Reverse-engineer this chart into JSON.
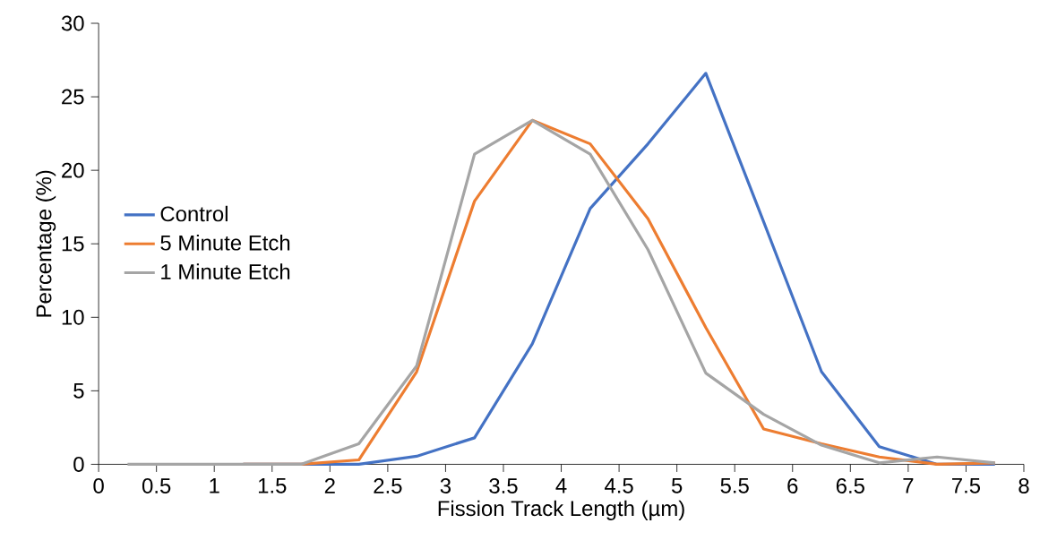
{
  "chart_data": {
    "type": "line",
    "xlabel": "Fission Track Length (µm)",
    "ylabel": "Percentage (%)",
    "x": [
      0.25,
      0.75,
      1.25,
      1.75,
      2.25,
      2.75,
      3.25,
      3.75,
      4.25,
      4.75,
      5.25,
      5.75,
      6.25,
      6.75,
      7.25,
      7.75
    ],
    "series": [
      {
        "name": "Control",
        "color": "#4472c4",
        "values": [
          null,
          null,
          0,
          0,
          0,
          0.55,
          1.8,
          8.2,
          17.4,
          21.8,
          26.6,
          16.5,
          6.3,
          1.2,
          0,
          0
        ]
      },
      {
        "name": "5 Minute Etch",
        "color": "#ed7d31",
        "values": [
          null,
          null,
          0,
          0,
          0.3,
          6.3,
          17.9,
          23.4,
          21.8,
          16.7,
          9.3,
          2.4,
          1.4,
          0.5,
          0,
          0.1
        ]
      },
      {
        "name": "1 Minute Etch",
        "color": "#a5a5a5",
        "values": [
          0,
          0,
          0,
          0,
          1.4,
          6.7,
          21.1,
          23.4,
          21.1,
          14.6,
          6.2,
          3.4,
          1.3,
          0.1,
          0.5,
          0.1
        ]
      }
    ],
    "xlim": [
      0,
      8
    ],
    "ylim": [
      0,
      30
    ],
    "xticks": [
      0,
      0.5,
      1,
      1.5,
      2,
      2.5,
      3,
      3.5,
      4,
      4.5,
      5,
      5.5,
      6,
      6.5,
      7,
      7.5,
      8
    ],
    "yticks": [
      0,
      5,
      10,
      15,
      20,
      25,
      30
    ],
    "grid": false,
    "legend": "left",
    "marker": "none",
    "line_style": "solid"
  }
}
